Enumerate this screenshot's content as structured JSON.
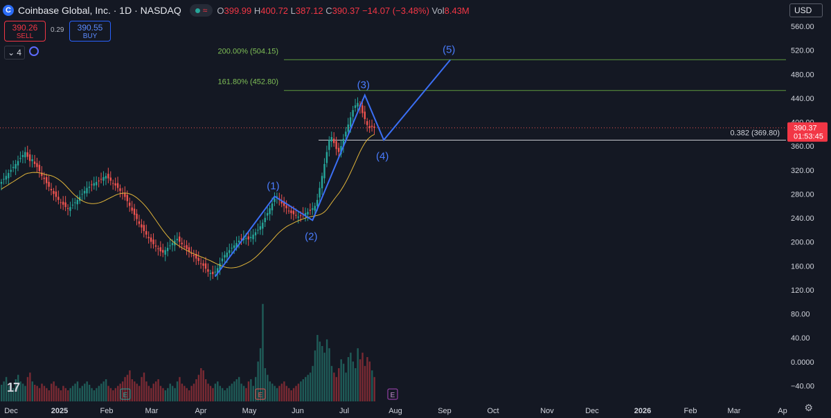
{
  "header": {
    "logo_text": "C",
    "title": "Coinbase Global, Inc. · 1D · NASDAQ",
    "status_icon": "wave-icon",
    "open_label": "O",
    "open": "399.99",
    "high_label": "H",
    "high": "400.72",
    "low_label": "L",
    "low": "387.12",
    "close_label": "C",
    "close": "390.37",
    "change": "−14.07 (−3.48%)",
    "vol_label": "Vol",
    "vol": "8.43M"
  },
  "trade": {
    "sell_price": "390.26",
    "sell_label": "SELL",
    "spread": "0.29",
    "buy_price": "390.55",
    "buy_label": "BUY"
  },
  "indicators": {
    "count": "4"
  },
  "currency": "USD",
  "chart_data": {
    "type": "candlestick",
    "title": "Coinbase Global, Inc. · 1D · NASDAQ",
    "y_axis": {
      "ticks": [
        "560.00",
        "520.00",
        "480.00",
        "440.00",
        "400.00",
        "360.00",
        "320.00",
        "280.00",
        "240.00",
        "200.00",
        "160.00",
        "120.00",
        "80.00",
        "40.00",
        "0.0000",
        "−40.00"
      ],
      "range": [
        -55,
        580
      ]
    },
    "x_axis": {
      "ticks": [
        "Dec",
        "2025",
        "Feb",
        "Mar",
        "Apr",
        "May",
        "Jun",
        "Jul",
        "Aug",
        "Sep",
        "Oct",
        "Nov",
        "Dec",
        "2026",
        "Feb",
        "Mar",
        "Ap"
      ]
    },
    "last_price": {
      "value": 390.37,
      "label": "390.37",
      "countdown": "01:53:45"
    },
    "fib_levels": [
      {
        "label": "200.00% (504.15)",
        "value": 504.15
      },
      {
        "label": "161.80% (452.80)",
        "value": 452.8
      },
      {
        "label": "0.382 (369.80)",
        "value": 369.8
      }
    ],
    "wave_points": [
      {
        "label": "",
        "date_index": 90,
        "value": 142
      },
      {
        "label": "(1)",
        "date_index": 115,
        "value": 276
      },
      {
        "label": "(2)",
        "date_index": 131,
        "value": 236
      },
      {
        "label": "(3)",
        "date_index": 153,
        "value": 445
      },
      {
        "label": "(4)",
        "date_index": 161,
        "value": 370
      },
      {
        "label": "(5)",
        "date_index": 189,
        "value": 504
      }
    ],
    "earnings_markers": [
      "E",
      "E",
      "E"
    ],
    "close_series": [
      300,
      305,
      310,
      315,
      320,
      325,
      330,
      335,
      340,
      345,
      350,
      342,
      335,
      338,
      330,
      325,
      318,
      310,
      305,
      298,
      292,
      286,
      280,
      275,
      270,
      266,
      262,
      258,
      255,
      258,
      262,
      266,
      270,
      275,
      280,
      285,
      290,
      292,
      295,
      298,
      300,
      302,
      305,
      308,
      310,
      306,
      302,
      298,
      294,
      290,
      285,
      280,
      275,
      268,
      260,
      252,
      245,
      238,
      230,
      224,
      218,
      212,
      206,
      200,
      196,
      192,
      188,
      184,
      182,
      186,
      190,
      194,
      198,
      202,
      205,
      200,
      196,
      192,
      188,
      184,
      180,
      176,
      172,
      168,
      164,
      160,
      155,
      150,
      148,
      146,
      150,
      156,
      164,
      172,
      178,
      182,
      186,
      190,
      194,
      198,
      202,
      205,
      208,
      206,
      204,
      208,
      212,
      216,
      220,
      226,
      232,
      240,
      248,
      256,
      264,
      272,
      276,
      270,
      264,
      260,
      256,
      252,
      248,
      246,
      244,
      242,
      244,
      246,
      248,
      250,
      252,
      256,
      260,
      270,
      290,
      310,
      330,
      350,
      370,
      375,
      365,
      355,
      350,
      360,
      372,
      384,
      396,
      408,
      420,
      428,
      432,
      425,
      415,
      405,
      395,
      390,
      392,
      390
    ],
    "volume_series": [
      15,
      18,
      22,
      14,
      16,
      12,
      20,
      24,
      18,
      16,
      14,
      22,
      26,
      18,
      15,
      14,
      12,
      16,
      14,
      12,
      10,
      16,
      18,
      14,
      12,
      10,
      14,
      12,
      10,
      12,
      14,
      16,
      18,
      12,
      14,
      16,
      18,
      15,
      12,
      10,
      12,
      14,
      16,
      18,
      20,
      14,
      12,
      10,
      12,
      14,
      16,
      18,
      22,
      24,
      28,
      20,
      18,
      16,
      14,
      22,
      26,
      18,
      14,
      12,
      16,
      18,
      20,
      14,
      12,
      10,
      12,
      16,
      14,
      12,
      18,
      22,
      16,
      14,
      12,
      10,
      14,
      16,
      20,
      24,
      30,
      28,
      20,
      16,
      14,
      12,
      16,
      18,
      14,
      12,
      10,
      12,
      14,
      16,
      18,
      20,
      22,
      16,
      14,
      12,
      18,
      20,
      14,
      22,
      36,
      48,
      88,
      30,
      24,
      18,
      16,
      14,
      12,
      14,
      16,
      18,
      14,
      12,
      10,
      12,
      14,
      16,
      18,
      20,
      22,
      24,
      26,
      32,
      46,
      60,
      54,
      50,
      44,
      56,
      48,
      32,
      26,
      22,
      30,
      38,
      34,
      26,
      40,
      44,
      36,
      30,
      48,
      38,
      44,
      32,
      40,
      36,
      28,
      22
    ]
  },
  "footer": {
    "tv_logo": "17"
  }
}
